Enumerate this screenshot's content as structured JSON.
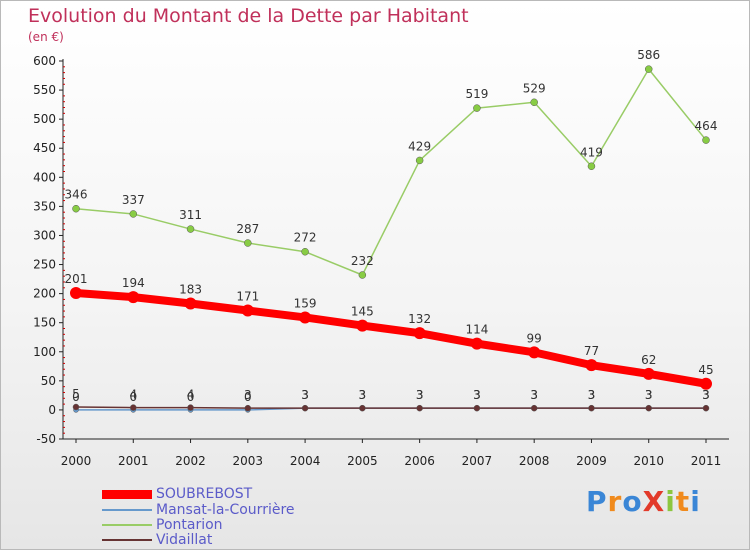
{
  "title": "Evolution du Montant de la Dette par Habitant",
  "unit": "(en €)",
  "logo": "ProXiti",
  "chart_data": {
    "type": "line",
    "title": "Evolution du Montant de la Dette par Habitant",
    "ylabel": "(en €)",
    "ylim": [
      -50,
      600
    ],
    "yticks": [
      -50,
      0,
      50,
      100,
      150,
      200,
      250,
      300,
      350,
      400,
      450,
      500,
      550,
      600
    ],
    "x": [
      "2000",
      "2001",
      "2002",
      "2003",
      "2004",
      "2005",
      "2006",
      "2007",
      "2008",
      "2009",
      "2010",
      "2011"
    ],
    "grid": false,
    "series": [
      {
        "name": "SOUBREBOST",
        "color": "#ff0000",
        "values": [
          201,
          194,
          183,
          171,
          159,
          145,
          132,
          114,
          99,
          77,
          62,
          45
        ]
      },
      {
        "name": "Mansat-la-Courrière",
        "color": "#6699cc",
        "values": [
          0,
          0,
          0,
          0,
          3,
          3,
          3,
          3,
          3,
          3,
          3,
          3
        ]
      },
      {
        "name": "Pontarion",
        "color": "#99cc66",
        "values": [
          346,
          337,
          311,
          287,
          272,
          232,
          429,
          519,
          529,
          419,
          586,
          464
        ]
      },
      {
        "name": "Vidaillat",
        "color": "#663333",
        "values": [
          5,
          4,
          4,
          3,
          3,
          3,
          3,
          3,
          3,
          3,
          3,
          3
        ]
      }
    ]
  }
}
